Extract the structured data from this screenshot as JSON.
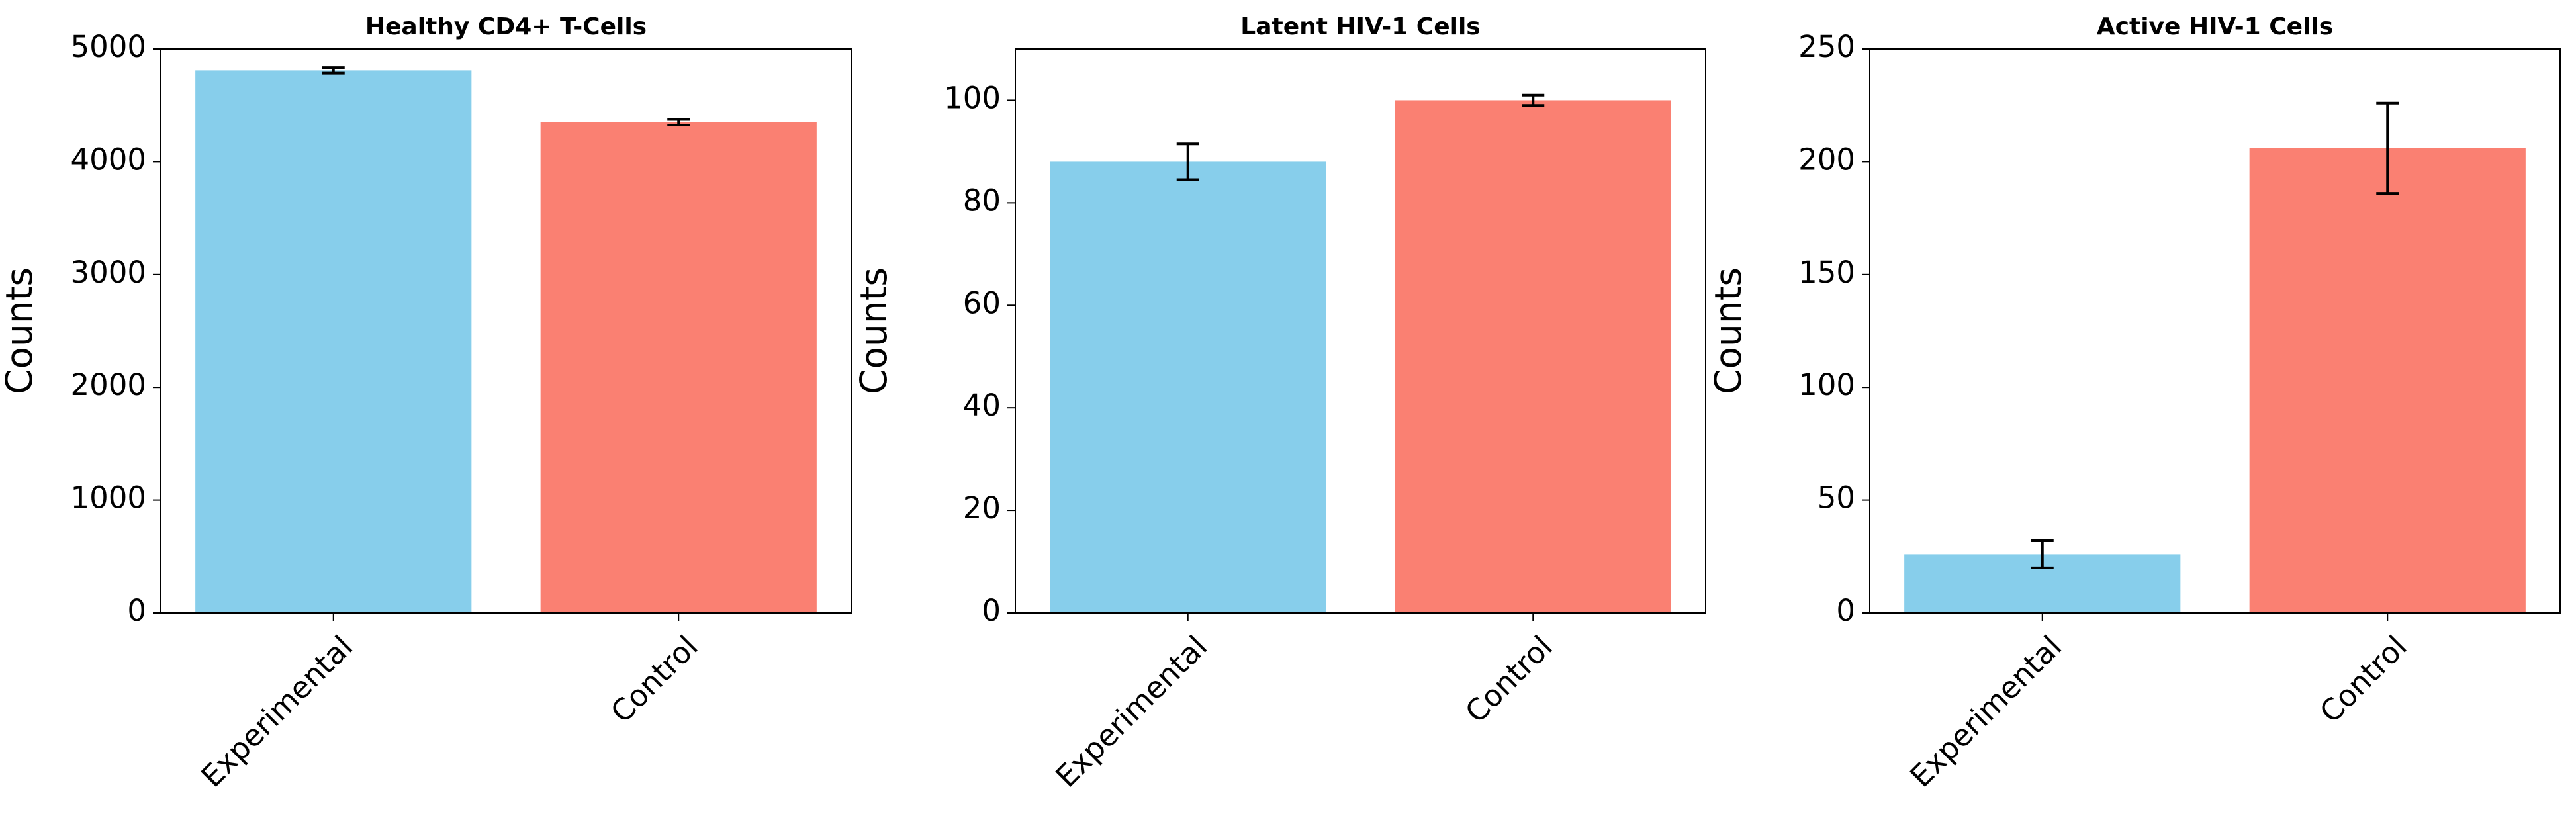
{
  "chart_data": [
    {
      "type": "bar",
      "title": "Healthy CD4+ T-Cells",
      "ylabel": "Counts",
      "categories": [
        "Experimental",
        "Control"
      ],
      "values": [
        4810,
        4350
      ],
      "errors": [
        25,
        25
      ],
      "colors": [
        "#87ceeb",
        "#fa8072"
      ],
      "ylim": [
        0,
        5000
      ],
      "yticks": [
        0,
        1000,
        2000,
        3000,
        4000,
        5000
      ]
    },
    {
      "type": "bar",
      "title": "Latent HIV-1 Cells",
      "ylabel": "Counts",
      "categories": [
        "Experimental",
        "Control"
      ],
      "values": [
        88,
        100
      ],
      "errors": [
        3.5,
        1
      ],
      "colors": [
        "#87ceeb",
        "#fa8072"
      ],
      "ylim": [
        0,
        110
      ],
      "yticks": [
        0,
        20,
        40,
        60,
        80,
        100
      ]
    },
    {
      "type": "bar",
      "title": "Active HIV-1 Cells",
      "ylabel": "Counts",
      "categories": [
        "Experimental",
        "Control"
      ],
      "values": [
        26,
        206
      ],
      "errors": [
        6,
        20
      ],
      "colors": [
        "#87ceeb",
        "#fa8072"
      ],
      "ylim": [
        0,
        250
      ],
      "yticks": [
        0,
        50,
        100,
        150,
        200,
        250
      ]
    }
  ]
}
